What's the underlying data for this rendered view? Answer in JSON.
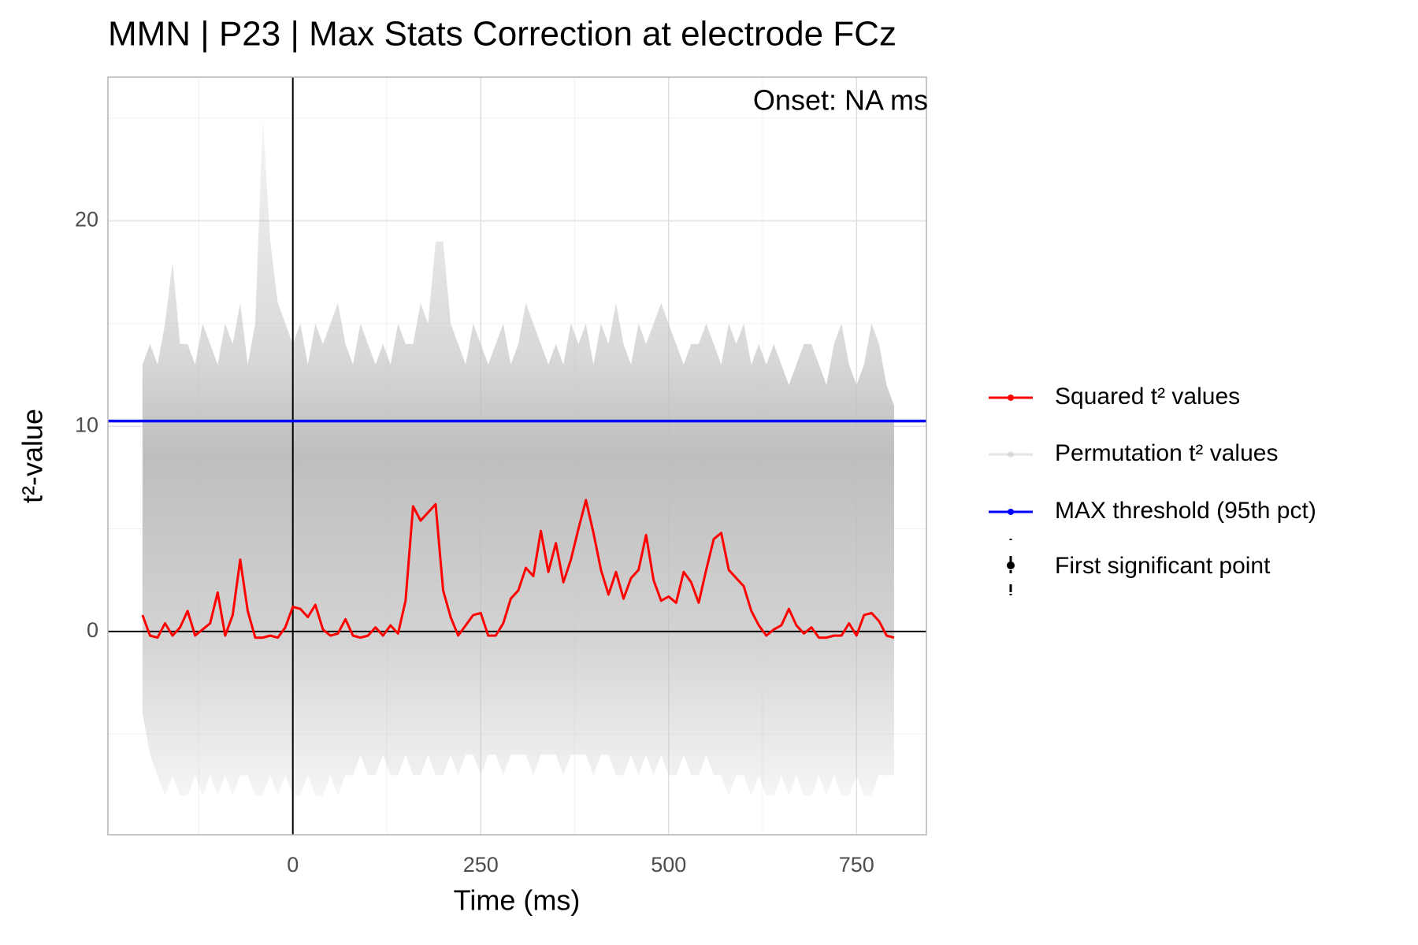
{
  "chart_data": {
    "type": "line",
    "title": "MMN | P23 | Max Stats Correction at electrode FCz",
    "annotation": "Onset: NA ms",
    "x_label": "Time (ms)",
    "y_label": "t²-value",
    "xlim": [
      -246,
      843
    ],
    "ylim": [
      -9.9,
      27
    ],
    "xticks": [
      0,
      250,
      500,
      750
    ],
    "yticks": [
      0,
      10,
      20
    ],
    "x_minor_grid": [
      -125,
      125,
      375,
      625
    ],
    "y_minor_grid": [
      -5,
      5,
      15,
      25
    ],
    "grid": true,
    "reference_lines": {
      "x": 0,
      "y": 0,
      "color": "#000000"
    },
    "x": [
      -200,
      -190,
      -180,
      -170,
      -160,
      -150,
      -140,
      -130,
      -120,
      -110,
      -100,
      -90,
      -80,
      -70,
      -60,
      -50,
      -40,
      -30,
      -20,
      -10,
      0,
      10,
      20,
      30,
      40,
      50,
      60,
      70,
      80,
      90,
      100,
      110,
      120,
      130,
      140,
      150,
      160,
      170,
      180,
      190,
      200,
      210,
      220,
      230,
      240,
      250,
      260,
      270,
      280,
      290,
      300,
      310,
      320,
      330,
      340,
      350,
      360,
      370,
      380,
      390,
      400,
      410,
      420,
      430,
      440,
      450,
      460,
      470,
      480,
      490,
      500,
      510,
      520,
      530,
      540,
      550,
      560,
      570,
      580,
      590,
      600,
      610,
      620,
      630,
      640,
      650,
      660,
      670,
      680,
      690,
      700,
      710,
      720,
      730,
      740,
      750,
      760,
      770,
      780,
      790,
      800
    ],
    "series": [
      {
        "name": "Squared t² values",
        "color": "#ff0000",
        "values": [
          0.8,
          -0.2,
          -0.3,
          0.4,
          -0.2,
          0.2,
          1.0,
          -0.2,
          0.1,
          0.4,
          1.9,
          -0.2,
          0.8,
          3.5,
          1.0,
          -0.3,
          -0.3,
          -0.2,
          -0.3,
          0.2,
          1.2,
          1.1,
          0.7,
          1.3,
          0.1,
          -0.2,
          -0.1,
          0.6,
          -0.2,
          -0.3,
          -0.2,
          0.2,
          -0.2,
          0.3,
          -0.1,
          1.5,
          6.1,
          5.4,
          5.8,
          6.2,
          2.0,
          0.7,
          -0.2,
          0.3,
          0.8,
          0.9,
          -0.2,
          -0.2,
          0.4,
          1.6,
          2.0,
          3.1,
          2.7,
          4.9,
          2.9,
          4.3,
          2.4,
          3.5,
          5.0,
          6.4,
          4.8,
          3.0,
          1.8,
          2.9,
          1.6,
          2.6,
          3.0,
          4.7,
          2.5,
          1.5,
          1.7,
          1.4,
          2.9,
          2.4,
          1.4,
          3.0,
          4.5,
          4.8,
          3.0,
          2.6,
          2.2,
          1.0,
          0.3,
          -0.2,
          0.1,
          0.3,
          1.1,
          0.3,
          -0.1,
          0.2,
          -0.3,
          -0.3,
          -0.2,
          -0.2,
          0.4,
          -0.2,
          0.8,
          0.9,
          0.5,
          -0.2,
          -0.3
        ]
      }
    ],
    "permutation_band": {
      "name": "Permutation t² values",
      "color": "#bebebe",
      "upper": [
        13,
        14,
        13,
        15,
        18,
        14,
        14,
        13,
        15,
        14,
        13,
        15,
        14,
        16,
        13,
        15,
        25,
        19,
        16,
        15,
        14,
        15,
        13,
        15,
        14,
        15,
        16,
        14,
        13,
        15,
        14,
        13,
        14,
        13,
        15,
        14,
        14,
        16,
        15,
        19,
        19,
        15,
        14,
        13,
        15,
        14,
        13,
        14,
        15,
        13,
        14,
        16,
        15,
        14,
        13,
        14,
        13,
        15,
        14,
        15,
        13,
        15,
        14,
        16,
        14,
        13,
        15,
        14,
        15,
        16,
        15,
        14,
        13,
        14,
        14,
        15,
        14,
        13,
        15,
        14,
        15,
        13,
        14,
        13,
        14,
        13,
        12,
        13,
        14,
        14,
        13,
        12,
        14,
        15,
        13,
        12,
        13,
        15,
        14,
        12,
        11
      ],
      "lower": [
        -4,
        -6,
        -7,
        -8,
        -7,
        -8,
        -8,
        -7,
        -8,
        -7,
        -8,
        -7,
        -8,
        -7,
        -7,
        -8,
        -8,
        -7,
        -8,
        -7,
        -8,
        -8,
        -7,
        -8,
        -8,
        -7,
        -8,
        -7,
        -7,
        -6,
        -7,
        -7,
        -6,
        -7,
        -7,
        -6,
        -7,
        -7,
        -6,
        -7,
        -7,
        -6,
        -7,
        -6,
        -6,
        -7,
        -6,
        -6,
        -7,
        -6,
        -6,
        -6,
        -7,
        -6,
        -6,
        -6,
        -7,
        -6,
        -6,
        -6,
        -7,
        -6,
        -6,
        -7,
        -7,
        -6,
        -7,
        -6,
        -7,
        -6,
        -7,
        -7,
        -6,
        -7,
        -7,
        -6,
        -7,
        -7,
        -8,
        -7,
        -7,
        -8,
        -7,
        -8,
        -8,
        -7,
        -8,
        -7,
        -8,
        -8,
        -7,
        -8,
        -7,
        -8,
        -8,
        -7,
        -8,
        -8,
        -7,
        -7,
        -7
      ]
    },
    "threshold": {
      "name": "MAX threshold (95th pct)",
      "color": "#0000ff",
      "value": 10.25
    },
    "onset_marker": {
      "name": "First significant point",
      "color": "#000000"
    }
  }
}
